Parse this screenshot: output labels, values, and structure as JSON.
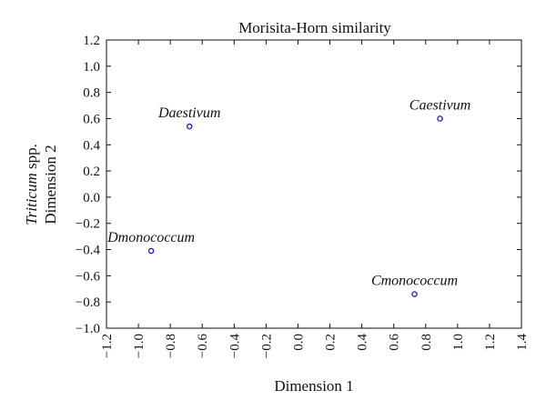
{
  "chart_data": {
    "type": "scatter",
    "title": "Morisita-Horn similarity",
    "xlabel": "Dimension 1",
    "ylabel": {
      "line1_italic": "Triticum",
      "line1_rest": " spp.",
      "line2": "Dimension 2"
    },
    "xlim": [
      -1.2,
      1.4
    ],
    "ylim": [
      -1.0,
      1.2
    ],
    "xticks": [
      "−1.2",
      "−1.0",
      "−0.8",
      "−0.6",
      "−0.4",
      "−0.2",
      "0.0",
      "0.2",
      "0.4",
      "0.6",
      "0.8",
      "1.0",
      "1.2",
      "1.4"
    ],
    "yticks": [
      "1.2",
      "1.0",
      "0.8",
      "0.6",
      "0.4",
      "0.2",
      "0.0",
      "−0.2",
      "−0.4",
      "−0.6",
      "−0.8",
      "−1.0"
    ],
    "grid": false,
    "marker_color": "#1f2fbf",
    "points": [
      {
        "label": "Daestivum",
        "x": -0.68,
        "y": 0.54
      },
      {
        "label": "Caestivum",
        "x": 0.89,
        "y": 0.6
      },
      {
        "label": "Dmonococcum",
        "x": -0.92,
        "y": -0.41
      },
      {
        "label": "Cmonococcum",
        "x": 0.73,
        "y": -0.74
      }
    ]
  }
}
